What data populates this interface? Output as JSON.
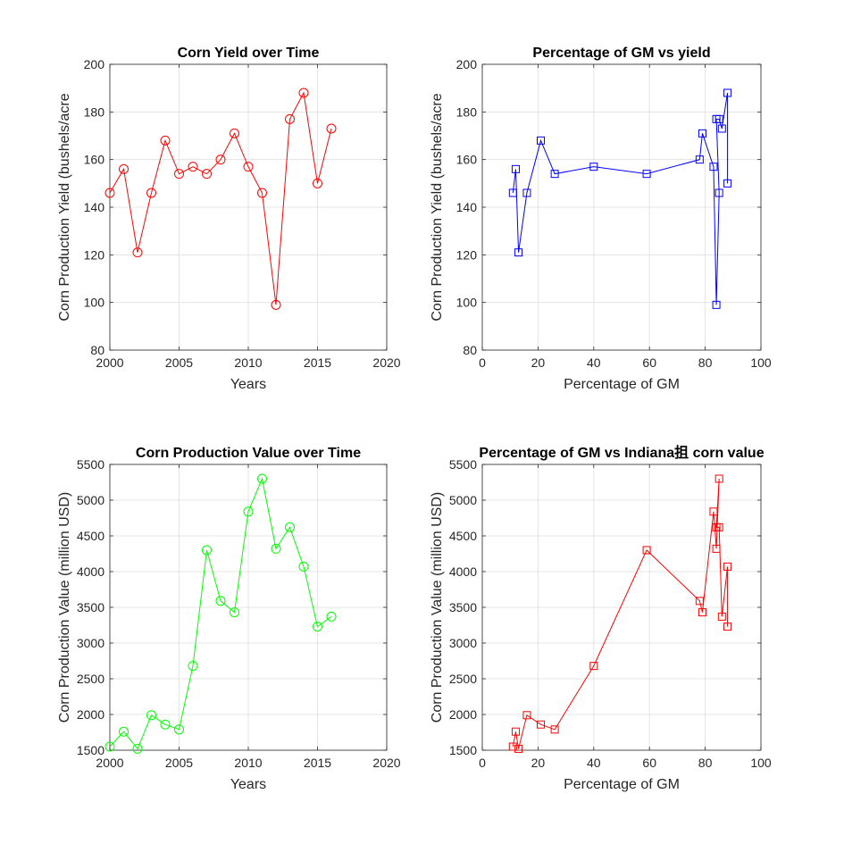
{
  "chart_data": [
    {
      "type": "line",
      "title": "Corn Yield over Time",
      "xlabel": "Years",
      "ylabel": "Corn Production Yield (bushels/acre",
      "xlim": [
        2000,
        2020
      ],
      "ylim": [
        80,
        200
      ],
      "xticks": [
        2000,
        2005,
        2010,
        2015,
        2020
      ],
      "yticks": [
        80,
        100,
        120,
        140,
        160,
        180,
        200
      ],
      "grid": true,
      "color": "#ff0000",
      "marker": "circle",
      "x": [
        2000,
        2001,
        2002,
        2003,
        2004,
        2005,
        2006,
        2007,
        2008,
        2009,
        2010,
        2011,
        2012,
        2013,
        2014,
        2015,
        2016
      ],
      "y": [
        146,
        156,
        121,
        146,
        168,
        154,
        157,
        154,
        160,
        171,
        157,
        146,
        99,
        177,
        188,
        150,
        173
      ]
    },
    {
      "type": "line",
      "title": "Percentage of GM vs yield",
      "xlabel": "Percentage of GM",
      "ylabel": "Corn Production Yield (bushels/acre",
      "xlim": [
        0,
        100
      ],
      "ylim": [
        80,
        200
      ],
      "xticks": [
        0,
        20,
        40,
        60,
        80,
        100
      ],
      "yticks": [
        80,
        100,
        120,
        140,
        160,
        180,
        200
      ],
      "grid": true,
      "color": "#0000ff",
      "marker": "square",
      "x": [
        11,
        12,
        13,
        16,
        21,
        26,
        40,
        59,
        78,
        79,
        83,
        84,
        85,
        84,
        85,
        86,
        88,
        88
      ],
      "y": [
        146,
        156,
        121,
        146,
        168,
        154,
        157,
        154,
        160,
        171,
        157,
        99,
        146,
        177,
        177,
        173,
        188,
        150
      ]
    },
    {
      "type": "line",
      "title": "Corn Production Value over Time",
      "xlabel": "Years",
      "ylabel": "Corn Production Value (million USD)",
      "xlim": [
        2000,
        2020
      ],
      "ylim": [
        1500,
        5500
      ],
      "xticks": [
        2000,
        2005,
        2010,
        2015,
        2020
      ],
      "yticks": [
        1500,
        2000,
        2500,
        3000,
        3500,
        4000,
        4500,
        5000,
        5500
      ],
      "grid": true,
      "color": "#00ff00",
      "marker": "circle",
      "x": [
        2000,
        2001,
        2002,
        2003,
        2004,
        2005,
        2006,
        2007,
        2008,
        2009,
        2010,
        2011,
        2012,
        2013,
        2014,
        2015,
        2016
      ],
      "y": [
        1550,
        1760,
        1520,
        1990,
        1860,
        1790,
        2680,
        4300,
        3590,
        3430,
        4840,
        5300,
        4320,
        4620,
        4070,
        3230,
        3370
      ]
    },
    {
      "type": "line",
      "title": "Percentage of GM vs Indiana抯 corn value",
      "xlabel": "Percentage of GM",
      "ylabel": "Corn Production Value (million USD)",
      "xlim": [
        0,
        100
      ],
      "ylim": [
        1500,
        5500
      ],
      "xticks": [
        0,
        20,
        40,
        60,
        80,
        100
      ],
      "yticks": [
        1500,
        2000,
        2500,
        3000,
        3500,
        4000,
        4500,
        5000,
        5500
      ],
      "grid": true,
      "color": "#ff0000",
      "marker": "square",
      "x": [
        11,
        12,
        13,
        16,
        21,
        26,
        40,
        59,
        78,
        79,
        83,
        84,
        85,
        84,
        85,
        86,
        88,
        88
      ],
      "y": [
        1550,
        1760,
        1520,
        1990,
        1860,
        1790,
        2680,
        4300,
        3590,
        3430,
        4840,
        4320,
        5300,
        4620,
        4620,
        3370,
        4070,
        3230
      ]
    }
  ]
}
